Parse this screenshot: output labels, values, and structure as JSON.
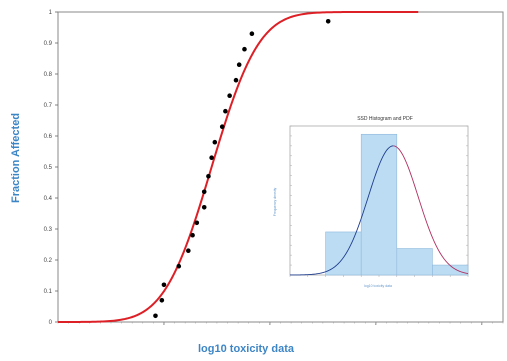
{
  "chart_data": [
    {
      "type": "scatter",
      "title": "",
      "xlabel": "log10 toxicity data",
      "ylabel": "Fraction Affected",
      "xlim": [
        -1,
        3.2
      ],
      "ylim": [
        0,
        1
      ],
      "x_ticks": [
        0,
        1,
        2,
        3
      ],
      "y_ticks": [
        0,
        0.1,
        0.2,
        0.3,
        0.4,
        0.5,
        0.6,
        0.7,
        0.8,
        0.9,
        1
      ],
      "y_tick_labels": [
        "0",
        "0.1",
        "0.2",
        "0.3",
        "0.4",
        "0.5",
        "0.6",
        "0.7",
        "0.8",
        "0.9",
        "1"
      ],
      "grid": false,
      "series": [
        {
          "type": "scatter",
          "color": "#000000",
          "points": [
            {
              "x": -0.08,
              "y": 0.02
            },
            {
              "x": -0.02,
              "y": 0.07
            },
            {
              "x": 0.0,
              "y": 0.12
            },
            {
              "x": 0.14,
              "y": 0.18
            },
            {
              "x": 0.23,
              "y": 0.23
            },
            {
              "x": 0.27,
              "y": 0.28
            },
            {
              "x": 0.31,
              "y": 0.32
            },
            {
              "x": 0.38,
              "y": 0.37
            },
            {
              "x": 0.38,
              "y": 0.42
            },
            {
              "x": 0.42,
              "y": 0.47
            },
            {
              "x": 0.45,
              "y": 0.53
            },
            {
              "x": 0.48,
              "y": 0.58
            },
            {
              "x": 0.55,
              "y": 0.63
            },
            {
              "x": 0.58,
              "y": 0.68
            },
            {
              "x": 0.62,
              "y": 0.73
            },
            {
              "x": 0.68,
              "y": 0.78
            },
            {
              "x": 0.71,
              "y": 0.83
            },
            {
              "x": 0.76,
              "y": 0.88
            },
            {
              "x": 0.83,
              "y": 0.93
            },
            {
              "x": 1.55,
              "y": 0.97
            }
          ]
        },
        {
          "type": "line",
          "color": "#dd1f26",
          "distribution": "normal_cdf",
          "mean": 0.45,
          "sd": 0.35,
          "x_range": [
            -1,
            2.4
          ]
        }
      ]
    },
    {
      "type": "bar",
      "title": "SSD Histogram and PDF",
      "xlabel": "log10 toxicity data",
      "ylabel": "Frequency density",
      "bins": [
        {
          "from": -0.5,
          "to": 0.0,
          "value": 0.26
        },
        {
          "from": 0.0,
          "to": 0.5,
          "value": 0.85
        },
        {
          "from": 0.5,
          "to": 1.0,
          "value": 0.16
        },
        {
          "from": 1.0,
          "to": 1.5,
          "value": 0.06
        }
      ],
      "xlim": [
        -1,
        1.5
      ],
      "ylim": [
        0,
        0.9
      ],
      "curve": {
        "distribution": "normal_pdf",
        "mean": 0.45,
        "sd": 0.35
      },
      "bar_color": "#bcdcf3",
      "curve_colors": [
        "#1f3d8f",
        "#b03060"
      ]
    }
  ]
}
